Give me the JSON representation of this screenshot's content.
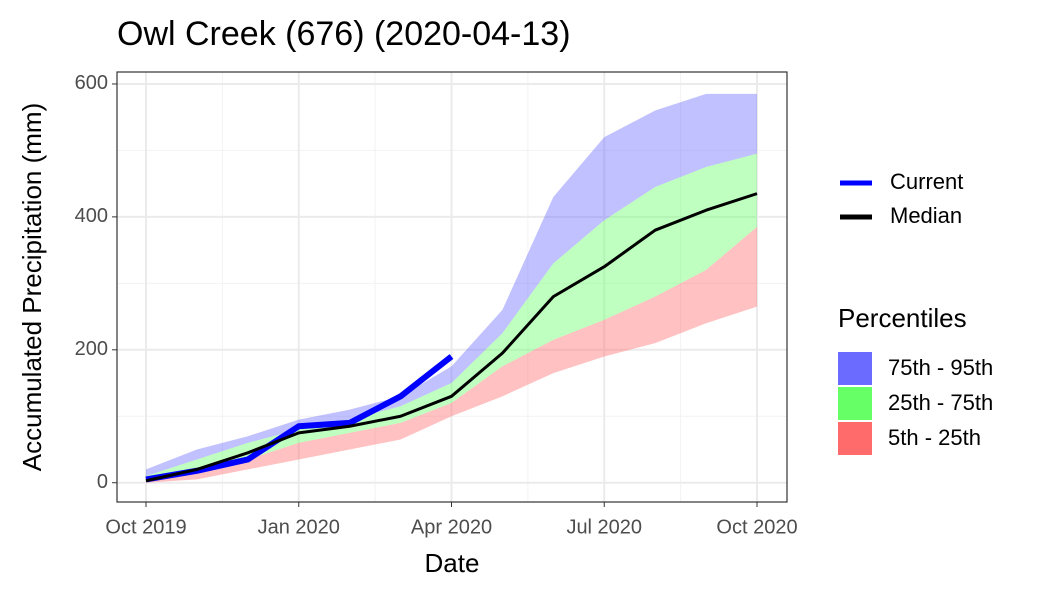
{
  "chart_data": {
    "type": "line",
    "title": "Owl Creek (676) (2020-04-13)",
    "x_label": "Date",
    "y_label": "Accumulated Precipitation (mm)",
    "x": [
      "2019-10",
      "2019-11",
      "2019-12",
      "2020-01",
      "2020-02",
      "2020-03",
      "2020-04",
      "2020-05",
      "2020-06",
      "2020-07",
      "2020-08",
      "2020-09",
      "2020-10"
    ],
    "xlim": [
      "2019-10",
      "2020-10"
    ],
    "xticks": [
      {
        "value": "2019-10",
        "label": "Oct 2019"
      },
      {
        "value": "2020-01",
        "label": "Jan 2020"
      },
      {
        "value": "2020-04",
        "label": "Apr 2020"
      },
      {
        "value": "2020-07",
        "label": "Jul 2020"
      },
      {
        "value": "2020-10",
        "label": "Oct 2020"
      }
    ],
    "ylim": [
      -29,
      618
    ],
    "yticks": [
      0,
      200,
      400,
      600
    ],
    "grid": true,
    "legend_title": "Percentiles",
    "bands": [
      {
        "name": "75th - 95th",
        "color": "#6b6bff",
        "lower": [
          10,
          35,
          60,
          80,
          95,
          115,
          150,
          225,
          330,
          395,
          445,
          475,
          495
        ],
        "upper": [
          20,
          50,
          70,
          95,
          110,
          130,
          175,
          260,
          430,
          520,
          560,
          585,
          585
        ]
      },
      {
        "name": "25th - 75th",
        "color": "#66ff66",
        "lower": [
          3,
          15,
          35,
          60,
          75,
          90,
          120,
          175,
          215,
          245,
          280,
          320,
          385
        ],
        "upper": [
          10,
          35,
          60,
          80,
          95,
          115,
          150,
          225,
          330,
          395,
          445,
          475,
          495
        ]
      },
      {
        "name": "5th - 25th",
        "color": "#ff6b6b",
        "lower": [
          0,
          5,
          20,
          35,
          50,
          65,
          100,
          130,
          165,
          190,
          210,
          240,
          265
        ],
        "upper": [
          3,
          15,
          35,
          60,
          75,
          90,
          120,
          175,
          215,
          245,
          280,
          320,
          385
        ]
      }
    ],
    "series": [
      {
        "name": "Current",
        "color": "#0000ff",
        "values": [
          5,
          18,
          35,
          85,
          90,
          130,
          190,
          null,
          null,
          null,
          null,
          null,
          null
        ]
      },
      {
        "name": "Median",
        "color": "#000000",
        "values": [
          3,
          20,
          45,
          75,
          85,
          100,
          130,
          195,
          280,
          325,
          380,
          410,
          435
        ]
      }
    ]
  }
}
